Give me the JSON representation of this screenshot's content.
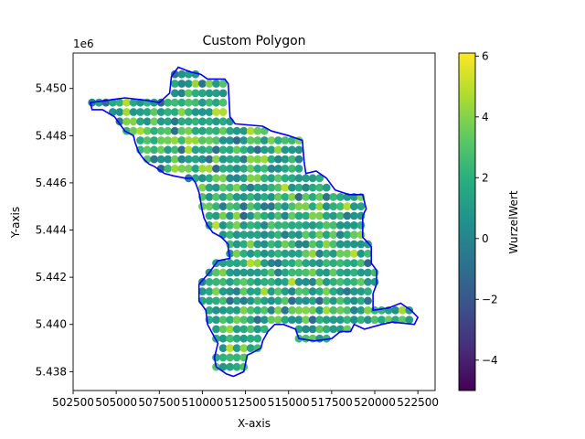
{
  "chart_data": {
    "type": "scatter",
    "title": "Custom Polygon",
    "xlabel": "X-axis",
    "ylabel": "Y-axis",
    "y_offset_label": "1e6",
    "xlim": [
      502500,
      523500
    ],
    "ylim": [
      5437200,
      5451500
    ],
    "x_ticks": [
      502500,
      505000,
      507500,
      510000,
      512500,
      515000,
      517500,
      520000,
      522500
    ],
    "x_tick_labels": [
      "502500",
      "505000",
      "507500",
      "510000",
      "512500",
      "515000",
      "517500",
      "520000",
      "522500"
    ],
    "y_ticks": [
      5438000,
      5440000,
      5442000,
      5444000,
      5446000,
      5448000,
      5450000
    ],
    "y_tick_labels": [
      "5.438",
      "5.440",
      "5.442",
      "5.444",
      "5.446",
      "5.448",
      "5.450"
    ],
    "grid": false,
    "point_spacing": 400,
    "colorbar": {
      "label": "WurzelWert",
      "colormap": "viridis",
      "range": [
        -5,
        6.1
      ],
      "ticks": [
        -4,
        -2,
        0,
        2,
        4,
        6
      ],
      "tick_labels": [
        "−4",
        "−2",
        "0",
        "2",
        "4",
        "6"
      ]
    },
    "outline_color": "#0000ff",
    "boundary": [
      [
        503500,
        5449400
      ],
      [
        505500,
        5449600
      ],
      [
        506700,
        5449500
      ],
      [
        507500,
        5449400
      ],
      [
        508100,
        5449800
      ],
      [
        508200,
        5450500
      ],
      [
        508600,
        5450900
      ],
      [
        509300,
        5450700
      ],
      [
        509900,
        5450600
      ],
      [
        510300,
        5450400
      ],
      [
        511300,
        5450400
      ],
      [
        511500,
        5450200
      ],
      [
        511600,
        5448800
      ],
      [
        511900,
        5448500
      ],
      [
        513500,
        5448400
      ],
      [
        514000,
        5448200
      ],
      [
        515000,
        5448000
      ],
      [
        515800,
        5447800
      ],
      [
        515900,
        5446900
      ],
      [
        516000,
        5446400
      ],
      [
        516600,
        5446500
      ],
      [
        517200,
        5446200
      ],
      [
        517700,
        5445700
      ],
      [
        518500,
        5445500
      ],
      [
        519300,
        5445500
      ],
      [
        519500,
        5444900
      ],
      [
        519300,
        5444600
      ],
      [
        519300,
        5443700
      ],
      [
        519800,
        5443300
      ],
      [
        519800,
        5442600
      ],
      [
        520100,
        5442300
      ],
      [
        520100,
        5441700
      ],
      [
        519900,
        5441300
      ],
      [
        519900,
        5440600
      ],
      [
        520800,
        5440700
      ],
      [
        521500,
        5440900
      ],
      [
        522100,
        5440600
      ],
      [
        522500,
        5440300
      ],
      [
        522300,
        5440000
      ],
      [
        521000,
        5440100
      ],
      [
        520400,
        5440000
      ],
      [
        519400,
        5439800
      ],
      [
        518800,
        5440000
      ],
      [
        518600,
        5439700
      ],
      [
        518000,
        5439700
      ],
      [
        517500,
        5439400
      ],
      [
        516500,
        5439300
      ],
      [
        515600,
        5439400
      ],
      [
        515400,
        5439800
      ],
      [
        514700,
        5440000
      ],
      [
        514200,
        5440000
      ],
      [
        513800,
        5439700
      ],
      [
        513500,
        5439300
      ],
      [
        513400,
        5439000
      ],
      [
        512900,
        5438800
      ],
      [
        512600,
        5438700
      ],
      [
        512400,
        5438000
      ],
      [
        511800,
        5437800
      ],
      [
        511400,
        5437900
      ],
      [
        510800,
        5438200
      ],
      [
        510700,
        5438600
      ],
      [
        510900,
        5439200
      ],
      [
        510600,
        5439600
      ],
      [
        510300,
        5440000
      ],
      [
        510200,
        5440600
      ],
      [
        509800,
        5441000
      ],
      [
        509800,
        5441700
      ],
      [
        510400,
        5442200
      ],
      [
        510900,
        5442700
      ],
      [
        511600,
        5442800
      ],
      [
        511500,
        5443200
      ],
      [
        511500,
        5443400
      ],
      [
        511100,
        5443700
      ],
      [
        510600,
        5443900
      ],
      [
        510300,
        5444200
      ],
      [
        510100,
        5444500
      ],
      [
        510000,
        5444800
      ],
      [
        509800,
        5445600
      ],
      [
        509600,
        5446000
      ],
      [
        509400,
        5446200
      ],
      [
        509000,
        5446200
      ],
      [
        508300,
        5446300
      ],
      [
        507800,
        5446400
      ],
      [
        507200,
        5446700
      ],
      [
        506900,
        5446800
      ],
      [
        506600,
        5447000
      ],
      [
        506300,
        5447300
      ],
      [
        506100,
        5447700
      ],
      [
        506000,
        5448000
      ],
      [
        505500,
        5448200
      ],
      [
        505200,
        5448500
      ],
      [
        504900,
        5448800
      ],
      [
        504200,
        5449100
      ],
      [
        503600,
        5449100
      ],
      [
        503500,
        5449400
      ]
    ],
    "special_points": [
      {
        "x": 512500,
        "y": 5443800,
        "value": 6.0
      },
      {
        "x": 513700,
        "y": 5444200,
        "value": 5.5
      },
      {
        "x": 511700,
        "y": 5447300,
        "value": 5.8
      },
      {
        "x": 511300,
        "y": 5446900,
        "value": 5.2
      },
      {
        "x": 512900,
        "y": 5441500,
        "value": 5.6
      },
      {
        "x": 512500,
        "y": 5440000,
        "value": 5.9
      },
      {
        "x": 515700,
        "y": 5440300,
        "value": 5.7
      },
      {
        "x": 515300,
        "y": 5445400,
        "value": 5.4
      },
      {
        "x": 518500,
        "y": 5441800,
        "value": 5.5
      },
      {
        "x": 507300,
        "y": 5446800,
        "value": -4.6
      },
      {
        "x": 507700,
        "y": 5446800,
        "value": -4.2
      },
      {
        "x": 507300,
        "y": 5448800,
        "value": -3.6
      },
      {
        "x": 511000,
        "y": 5442400,
        "value": -4.3
      },
      {
        "x": 516000,
        "y": 5441300,
        "value": -3.3
      },
      {
        "x": 512500,
        "y": 5439000,
        "value": -2.8
      }
    ]
  }
}
